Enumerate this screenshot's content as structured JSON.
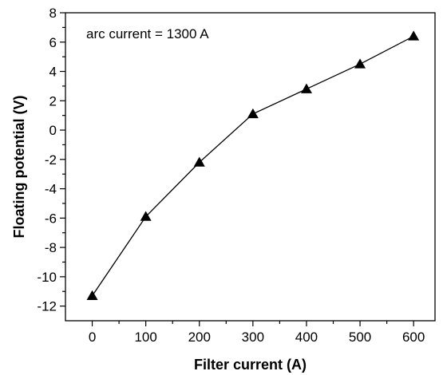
{
  "chart_data": {
    "type": "line",
    "annotation": "arc current = 1300 A",
    "xlabel": "Filter current (A)",
    "ylabel": "Floating potential (V)",
    "xlim": [
      -50,
      640
    ],
    "ylim": [
      -13,
      8
    ],
    "x_ticks": [
      0,
      100,
      200,
      300,
      400,
      500,
      600
    ],
    "x_tick_labels": [
      "0",
      "100",
      "200",
      "300",
      "400",
      "500",
      "600"
    ],
    "y_ticks": [
      -12,
      -10,
      -8,
      -6,
      -4,
      -2,
      0,
      2,
      4,
      6,
      8
    ],
    "y_tick_labels": [
      "-12",
      "-10",
      "-8",
      "-6",
      "-4",
      "-2",
      "0",
      "2",
      "4",
      "6",
      "8"
    ],
    "marker": "triangle",
    "grid": false,
    "series": [
      {
        "x": [
          0,
          100,
          200,
          300,
          400,
          500,
          600
        ],
        "y": [
          -11.3,
          -5.9,
          -2.2,
          1.1,
          2.8,
          4.5,
          6.4
        ]
      }
    ]
  }
}
